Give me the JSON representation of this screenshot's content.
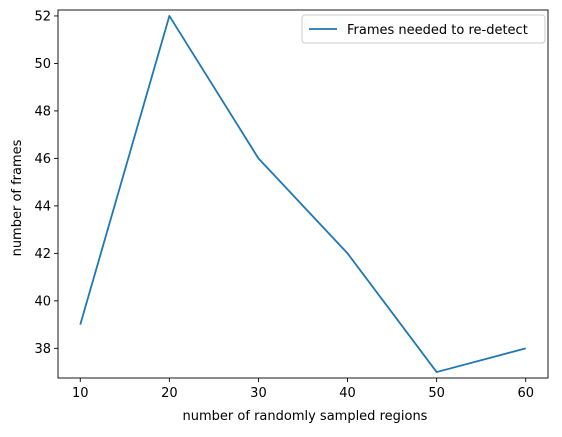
{
  "chart_data": {
    "type": "line",
    "xlabel": "number of randomly sampled regions",
    "ylabel": "number of frames",
    "x": [
      10,
      20,
      30,
      40,
      50,
      60
    ],
    "xticks": [
      10,
      20,
      30,
      40,
      50,
      60
    ],
    "yticks": [
      38,
      40,
      42,
      44,
      46,
      48,
      50,
      52
    ],
    "xlim": [
      7.5,
      62.5
    ],
    "ylim": [
      36.75,
      52.25
    ],
    "grid": false,
    "legend_position": "top-right",
    "series": [
      {
        "name": "Frames needed to re-detect",
        "values": [
          39,
          52,
          46,
          42,
          37,
          38
        ],
        "color": "#1f77b4"
      }
    ]
  }
}
